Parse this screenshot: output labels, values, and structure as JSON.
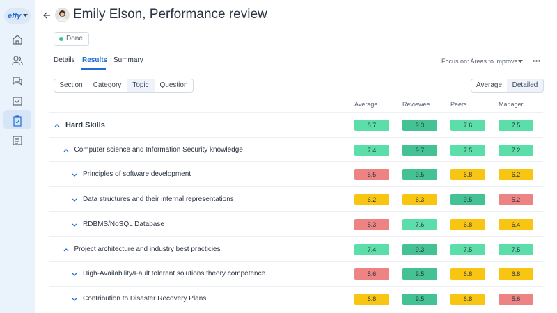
{
  "sidebar": {
    "logo": "effy"
  },
  "header": {
    "title": "Emily Elson, Performance review",
    "status": "Done"
  },
  "tabs": [
    "Details",
    "Results",
    "Summary"
  ],
  "focus": "Focus on: Areas to improve",
  "groupings": [
    "Section",
    "Category",
    "Topic",
    "Question"
  ],
  "views": [
    "Average",
    "Detailed"
  ],
  "columns": [
    "Average",
    "Reviewee",
    "Peers",
    "Manager"
  ],
  "rows": [
    {
      "label": "Hard Skills",
      "scores": [
        8.7,
        9.3,
        7.6,
        7.5
      ],
      "colors": [
        "#5cdeaa",
        "#44c293",
        "#5cdeaa",
        "#5cdeaa"
      ],
      "children": [
        {
          "label": "Computer science and Information Security knowledge",
          "scores": [
            7.4,
            9.7,
            7.5,
            7.2
          ],
          "colors": [
            "#5cdeaa",
            "#44c293",
            "#5cdeaa",
            "#5cdeaa"
          ],
          "children": [
            {
              "label": "Principles of software development",
              "scores": [
                5.5,
                9.5,
                6.8,
                6.2
              ],
              "colors": [
                "#ee8383",
                "#44c293",
                "#f7c512",
                "#f7c512"
              ]
            },
            {
              "label": "Data structures and their internal representations",
              "scores": [
                6.2,
                6.3,
                9.5,
                5.2
              ],
              "colors": [
                "#f7c512",
                "#f7c512",
                "#44c293",
                "#ee8383"
              ]
            },
            {
              "label": "RDBMS/NoSQL Database",
              "scores": [
                5.3,
                7.6,
                6.8,
                6.4
              ],
              "colors": [
                "#ee8383",
                "#5cdeaa",
                "#f7c512",
                "#f7c512"
              ]
            }
          ]
        },
        {
          "label": "Project architecture and industry best practicies",
          "scores": [
            7.4,
            9.3,
            7.5,
            7.5
          ],
          "colors": [
            "#5cdeaa",
            "#44c293",
            "#5cdeaa",
            "#5cdeaa"
          ],
          "children": [
            {
              "label": "High-Availability/Fault tolerant solutions theory competence",
              "scores": [
                5.6,
                9.5,
                6.8,
                6.8
              ],
              "colors": [
                "#ee8383",
                "#44c293",
                "#f7c512",
                "#f7c512"
              ]
            },
            {
              "label": "Contribution to Disaster Recovery Plans",
              "scores": [
                6.8,
                9.5,
                6.8,
                5.6
              ],
              "colors": [
                "#f7c512",
                "#44c293",
                "#f7c512",
                "#ee8383"
              ]
            }
          ]
        }
      ]
    }
  ]
}
